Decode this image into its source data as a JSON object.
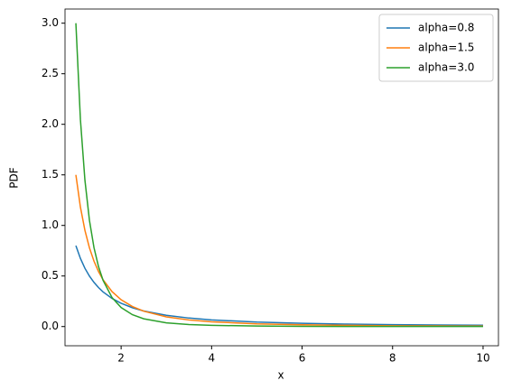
{
  "chart_data": {
    "type": "line",
    "xlabel": "x",
    "ylabel": "PDF",
    "x": [
      1,
      1.1,
      1.2,
      1.3,
      1.4,
      1.5,
      1.6,
      1.8,
      2,
      2.25,
      2.5,
      3,
      3.5,
      4,
      5,
      6,
      7,
      8,
      9,
      10
    ],
    "series": [
      {
        "name": "alpha=0.8",
        "color": "#1f77b4",
        "values": [
          0.8,
          0.674,
          0.576,
          0.499,
          0.437,
          0.386,
          0.343,
          0.278,
          0.23,
          0.186,
          0.154,
          0.111,
          0.084,
          0.066,
          0.044,
          0.032,
          0.024,
          0.019,
          0.015,
          0.013
        ]
      },
      {
        "name": "alpha=1.5",
        "color": "#ff7f0e",
        "values": [
          1.5,
          1.182,
          0.951,
          0.778,
          0.647,
          0.544,
          0.463,
          0.345,
          0.265,
          0.198,
          0.152,
          0.096,
          0.065,
          0.047,
          0.027,
          0.017,
          0.012,
          0.008,
          0.006,
          0.005
        ]
      },
      {
        "name": "alpha=3.0",
        "color": "#2ca02c",
        "values": [
          3,
          2.049,
          1.447,
          1.05,
          0.781,
          0.593,
          0.458,
          0.286,
          0.188,
          0.117,
          0.077,
          0.037,
          0.02,
          0.012,
          0.005,
          0.002,
          0.001,
          0.001,
          0.0005,
          0.0003
        ]
      }
    ],
    "xlim": [
      0.76,
      10.34
    ],
    "xticks": [
      2,
      4,
      6,
      8,
      10
    ],
    "ylim": [
      -0.19,
      3.14
    ],
    "yticks": [
      {
        "value": 0,
        "label": "0.0"
      },
      {
        "value": 0.5,
        "label": "0.5"
      },
      {
        "value": 1,
        "label": "1.0"
      },
      {
        "value": 1.5,
        "label": "1.5"
      },
      {
        "value": 2,
        "label": "2.0"
      },
      {
        "value": 2.5,
        "label": "2.5"
      },
      {
        "value": 3,
        "label": "3.0"
      }
    ],
    "legend": "upper right"
  }
}
